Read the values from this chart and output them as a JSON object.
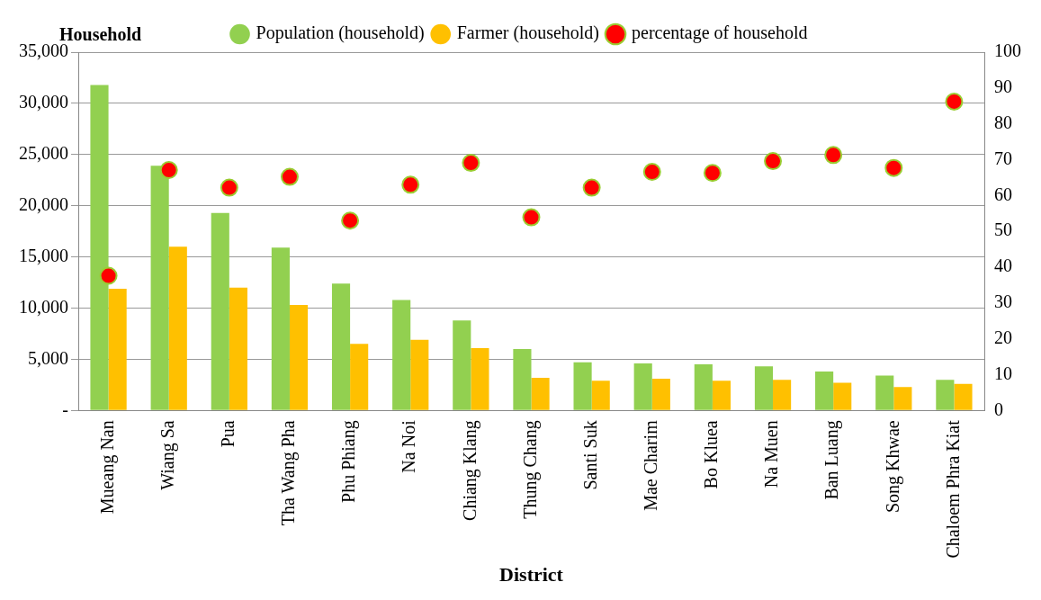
{
  "chart_data": {
    "type": "bar",
    "xlabel": "District",
    "ylabel": "Household",
    "categories": [
      "Mueang Nan",
      "Wiang Sa",
      "Pua",
      "Tha Wang Pha",
      "Phu Phiang",
      "Na Noi",
      "Chiang Klang",
      "Thung Chang",
      "Santi Suk",
      "Mae Charim",
      "Bo Kluea",
      "Na Muen",
      "Ban Luang",
      "Song Khwae",
      "Chaloem Phra Kiat"
    ],
    "series": [
      {
        "name": "Population (household)",
        "color": "#92d050",
        "values": [
          31800,
          23900,
          19300,
          15900,
          12400,
          10800,
          8800,
          6000,
          4700,
          4600,
          4500,
          4300,
          3800,
          3400,
          3000
        ]
      },
      {
        "name": "Farmer (household)",
        "color": "#ffc000",
        "values": [
          11900,
          16000,
          12000,
          10300,
          6500,
          6900,
          6100,
          3200,
          2900,
          3100,
          2900,
          3000,
          2700,
          2300,
          2600
        ]
      },
      {
        "name": "percentage of household",
        "type": "scatter",
        "axis": "y2",
        "marker": "circle",
        "color": "#ff0000",
        "x": [
          "Mueang Nan",
          "Wiang Sa",
          "Pua",
          "Tha Wang Pha",
          "Phu Phiang",
          "Na Noi",
          "Chiang Klang",
          "Thung Chang",
          "Santi Suk",
          "Mae Charim",
          "Bo Kluea",
          "Na Muen",
          "Ban Luang",
          "Song Khwae",
          "Chaloem Phra Kiat"
        ],
        "values": [
          37.6,
          67.1,
          62.2,
          65.2,
          53.0,
          63.0,
          69.1,
          53.9,
          62.2,
          66.6,
          66.3,
          69.6,
          71.3,
          67.7,
          86.2
        ]
      }
    ],
    "ylim": [
      0,
      35000
    ],
    "yticks": [
      {
        "value": 0,
        "label": "-"
      },
      {
        "value": 5000,
        "label": "5,000"
      },
      {
        "value": 10000,
        "label": "10,000"
      },
      {
        "value": 15000,
        "label": "15,000"
      },
      {
        "value": 20000,
        "label": "20,000"
      },
      {
        "value": 25000,
        "label": "25,000"
      },
      {
        "value": 30000,
        "label": "30,000"
      },
      {
        "value": 35000,
        "label": "35,000"
      }
    ],
    "y2lim": [
      0,
      100
    ],
    "y2ticks": [
      0,
      10,
      20,
      30,
      40,
      50,
      60,
      70,
      80,
      90,
      100
    ],
    "grid": "y",
    "legend": "top"
  }
}
